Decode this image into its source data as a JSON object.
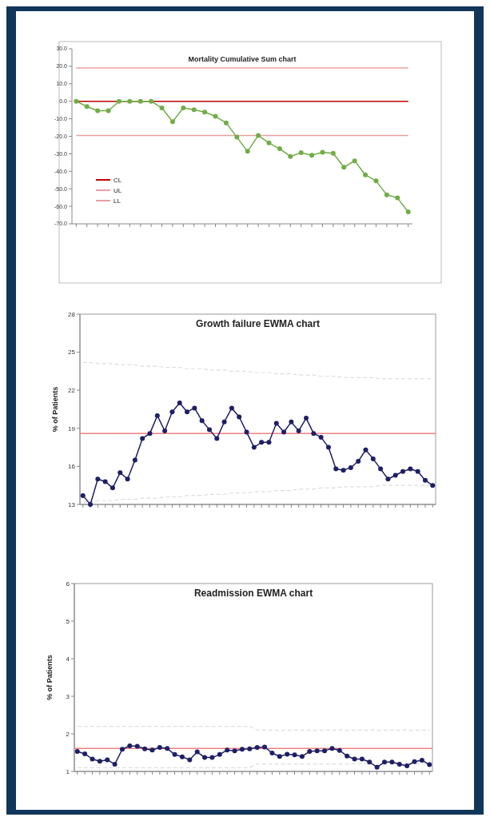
{
  "chart_data": [
    {
      "type": "line",
      "title": "Mortality Cumulative Sum chart",
      "categories": [
        null,
        null,
        null,
        null,
        null,
        null,
        null,
        null,
        null,
        null,
        null,
        null,
        null,
        null,
        null,
        null,
        null,
        null,
        null,
        null,
        null,
        null,
        null,
        null,
        null,
        null,
        null,
        null,
        null,
        null,
        null,
        null
      ],
      "series": [
        {
          "color": "#70ad47",
          "marker": "circle",
          "values": [
            0,
            -3,
            -5.4,
            -5.4,
            0,
            0,
            0,
            0,
            -3.8,
            -11.7,
            -3.8,
            -4.8,
            -6.2,
            -8.6,
            -12.3,
            -20.5,
            -28.6,
            -19.5,
            -23.8,
            -27.1,
            -31.5,
            -29.4,
            -30.8,
            -29.1,
            -29.7,
            -37.7,
            -34,
            -42,
            -45.5,
            -53.4,
            -55.2,
            -63.2
          ]
        },
        {
          "name": "CL",
          "color": "#c00000",
          "marker": "none",
          "values": [
            0,
            0,
            0,
            0,
            0,
            0,
            0,
            0,
            0,
            0,
            0,
            0,
            0,
            0,
            0,
            0,
            0,
            0,
            0,
            0,
            0,
            0,
            0,
            0,
            0,
            0,
            0,
            0,
            0,
            0,
            0,
            0
          ]
        },
        {
          "name": "UL",
          "color": "#e8a0a0",
          "marker": "none",
          "values": [
            19,
            19,
            19,
            19,
            19,
            19,
            19,
            19,
            19,
            19,
            19,
            19,
            19,
            19,
            19,
            19,
            19,
            19,
            19,
            19,
            19,
            19,
            19,
            19,
            19,
            19,
            19,
            19,
            19,
            19,
            19,
            19
          ]
        },
        {
          "name": "LL",
          "color": "#e8a0a0",
          "marker": "none",
          "values": [
            -19.5,
            -19.5,
            -19.5,
            -19.5,
            -19.5,
            -19.5,
            -19.5,
            -19.5,
            -19.5,
            -19.5,
            -19.5,
            -19.5,
            -19.5,
            -19.5,
            -19.5,
            -19.5,
            -19.5,
            -19.5,
            -19.5,
            -19.5,
            -19.5,
            -19.5,
            -19.5,
            -19.5,
            -19.5,
            -19.5,
            -19.5,
            -19.5,
            -19.5,
            -19.5,
            -19.5,
            -19.5
          ]
        }
      ],
      "ylim": [
        -70,
        30
      ],
      "yticks": [
        {
          "value": -70,
          "label": "-70.0"
        },
        {
          "value": -60,
          "label": "-60.0"
        },
        {
          "value": -50,
          "label": "-50.0"
        },
        {
          "value": -40,
          "label": "-40.0"
        },
        {
          "value": -30,
          "label": "-30.0"
        },
        {
          "value": -20,
          "label": "-20.0"
        },
        {
          "value": -10,
          "label": "-10.0"
        },
        {
          "value": 0,
          "label": "0.0"
        },
        {
          "value": 10,
          "label": "10.0"
        },
        {
          "value": 20,
          "label": "20.0"
        },
        {
          "value": 30,
          "label": "30.0"
        }
      ],
      "legend": "bottom left"
    },
    {
      "type": "line",
      "title": "Growth failure EWMA chart",
      "ylabel": "% of Patients",
      "categories": [
        null,
        null,
        null,
        null,
        null,
        null,
        null,
        null,
        null,
        null,
        null,
        null,
        null,
        null,
        null,
        null,
        null,
        null,
        null,
        null,
        null,
        null,
        null,
        null,
        null,
        null,
        null,
        null,
        null,
        null,
        null,
        null,
        null,
        null,
        null,
        null,
        null,
        null,
        null,
        null,
        null,
        null,
        null,
        null,
        null,
        null,
        null,
        null
      ],
      "series": [
        {
          "color": "#1f1f66",
          "marker": "circle",
          "values": [
            13.7,
            13,
            15,
            14.8,
            14.3,
            15.5,
            15,
            16.5,
            18.2,
            18.6,
            20,
            18.8,
            20.3,
            21,
            20.3,
            20.6,
            19.6,
            18.9,
            18.2,
            19.5,
            20.6,
            19.9,
            18.7,
            17.5,
            17.9,
            17.9,
            19.4,
            18.7,
            19.5,
            18.8,
            19.8,
            18.6,
            18.3,
            17.5,
            15.8,
            15.7,
            15.9,
            16.4,
            17.3,
            16.6,
            15.8,
            15,
            15.3,
            15.6,
            15.8,
            15.6,
            14.9,
            14.5
          ]
        },
        {
          "color": "#dddddd",
          "marker": "none",
          "line_style": "dashed",
          "values": [
            24.2,
            24.2,
            24.1,
            24.1,
            24.1,
            24.0,
            24.0,
            24.0,
            23.9,
            23.9,
            23.9,
            23.8,
            23.8,
            23.8,
            23.7,
            23.7,
            23.7,
            23.6,
            23.6,
            23.6,
            23.5,
            23.5,
            23.5,
            23.4,
            23.4,
            23.4,
            23.3,
            23.3,
            23.3,
            23.2,
            23.2,
            23.2,
            23.1,
            23.1,
            23.1,
            23.0,
            23.0,
            23.0,
            23.0,
            23.0,
            22.9,
            22.9,
            22.9,
            22.9,
            22.9,
            22.9,
            22.9,
            22.9
          ]
        },
        {
          "color": "#dddddd",
          "marker": "none",
          "line_style": "dashed",
          "values": [
            13.2,
            13.2,
            13.3,
            13.3,
            13.3,
            13.4,
            13.4,
            13.4,
            13.5,
            13.5,
            13.5,
            13.6,
            13.6,
            13.6,
            13.7,
            13.7,
            13.7,
            13.8,
            13.8,
            13.8,
            13.9,
            13.9,
            13.9,
            14.0,
            14.0,
            14.0,
            14.1,
            14.1,
            14.1,
            14.2,
            14.2,
            14.2,
            14.3,
            14.3,
            14.3,
            14.4,
            14.4,
            14.4,
            14.4,
            14.4,
            14.5,
            14.5,
            14.5,
            14.5,
            14.5,
            14.5,
            14.5,
            14.5
          ]
        }
      ],
      "ref_lines": [
        {
          "axis": "y",
          "value": 18.6,
          "color": "#f08080"
        }
      ],
      "ylim": [
        13,
        28
      ],
      "yticks": [
        13,
        16,
        19,
        22,
        25,
        28
      ]
    },
    {
      "type": "line",
      "title": "Readmission EWMA chart",
      "ylabel": "% of Patients",
      "categories": [
        null,
        null,
        null,
        null,
        null,
        null,
        null,
        null,
        null,
        null,
        null,
        null,
        null,
        null,
        null,
        null,
        null,
        null,
        null,
        null,
        null,
        null,
        null,
        null,
        null,
        null,
        null,
        null,
        null,
        null,
        null,
        null,
        null,
        null,
        null,
        null,
        null,
        null,
        null,
        null,
        null,
        null,
        null,
        null,
        null,
        null,
        null,
        null
      ],
      "series": [
        {
          "color": "#1f1f66",
          "marker": "circle",
          "values": [
            1.53,
            1.47,
            1.33,
            1.27,
            1.31,
            1.19,
            1.59,
            1.68,
            1.67,
            1.6,
            1.57,
            1.64,
            1.61,
            1.45,
            1.39,
            1.31,
            1.52,
            1.37,
            1.37,
            1.45,
            1.57,
            1.55,
            1.59,
            1.6,
            1.64,
            1.65,
            1.49,
            1.4,
            1.46,
            1.44,
            1.4,
            1.53,
            1.55,
            1.55,
            1.61,
            1.56,
            1.41,
            1.33,
            1.33,
            1.25,
            1.11,
            1.25,
            1.25,
            1.19,
            1.15,
            1.26,
            1.3,
            1.18
          ]
        },
        {
          "color": "#dddddd",
          "marker": "none",
          "line_style": "dashed",
          "values": [
            2.2,
            2.2,
            2.2,
            2.2,
            2.2,
            2.2,
            2.2,
            2.2,
            2.2,
            2.2,
            2.2,
            2.2,
            2.2,
            2.2,
            2.2,
            2.2,
            2.2,
            2.2,
            2.2,
            2.2,
            2.2,
            2.2,
            2.2,
            2.2,
            2.1,
            2.1,
            2.1,
            2.1,
            2.1,
            2.1,
            2.1,
            2.1,
            2.1,
            2.1,
            2.1,
            2.1,
            2.1,
            2.1,
            2.1,
            2.1,
            2.1,
            2.1,
            2.1,
            2.1,
            2.1,
            2.1,
            2.1,
            2.1
          ]
        },
        {
          "color": "#dddddd",
          "marker": "none",
          "line_style": "dashed",
          "values": [
            1.1,
            1.1,
            1.1,
            1.1,
            1.1,
            1.1,
            1.1,
            1.1,
            1.1,
            1.1,
            1.1,
            1.1,
            1.1,
            1.1,
            1.1,
            1.1,
            1.1,
            1.1,
            1.1,
            1.1,
            1.1,
            1.1,
            1.1,
            1.1,
            1.2,
            1.2,
            1.2,
            1.2,
            1.2,
            1.2,
            1.2,
            1.2,
            1.2,
            1.2,
            1.2,
            1.2,
            1.2,
            1.2,
            1.2,
            1.2,
            1.2,
            1.2,
            1.2,
            1.2,
            1.2,
            1.2,
            1.2,
            1.2
          ]
        }
      ],
      "ref_lines": [
        {
          "axis": "y",
          "value": 1.61,
          "color": "#f08080"
        }
      ],
      "ylim": [
        1,
        6
      ],
      "yticks": [
        1,
        2,
        3,
        4,
        5,
        6
      ]
    }
  ]
}
